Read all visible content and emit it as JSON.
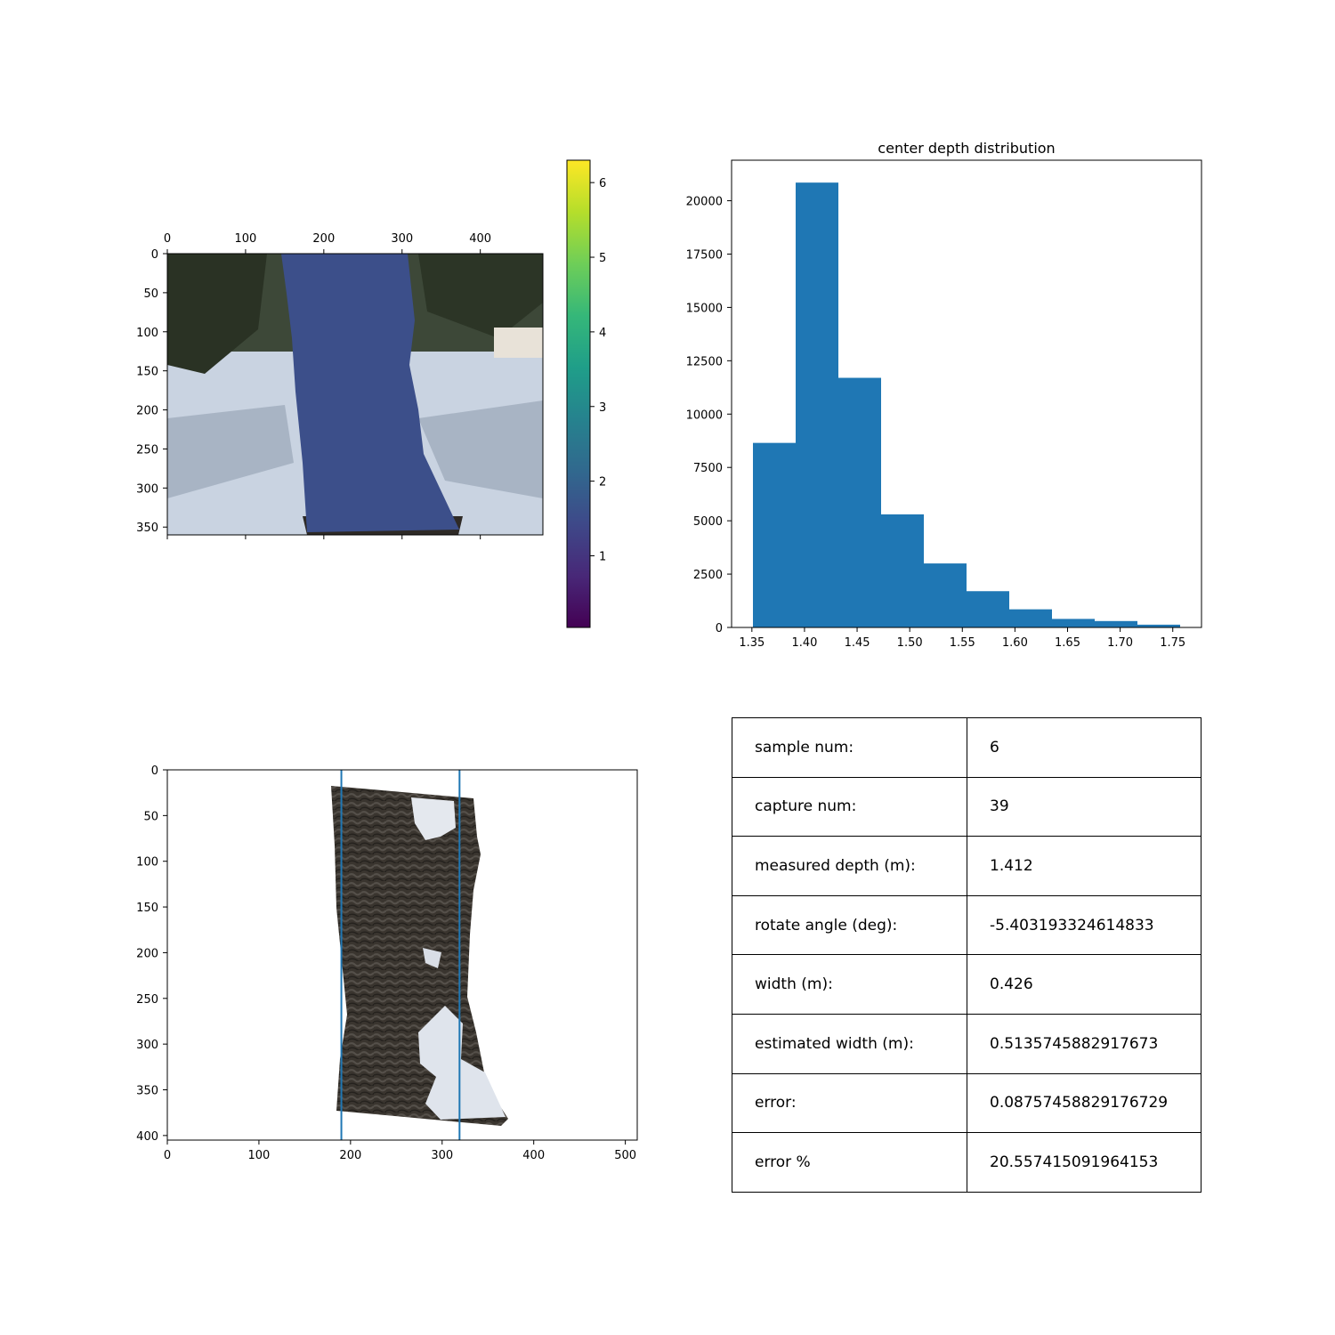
{
  "colors": {
    "bar": "#1f77b4",
    "vline": "#1f77b4",
    "depth_fill": "#3c4f8a",
    "viridis": [
      "#440154",
      "#482878",
      "#3e4989",
      "#31688e",
      "#26828e",
      "#1f9e89",
      "#35b779",
      "#6ece58",
      "#b5de2b",
      "#fde725"
    ]
  },
  "chart_data": [
    {
      "type": "heatmap",
      "description_kind": "depth overlay image with colorbar",
      "x_ticks": [
        0,
        100,
        200,
        300,
        400
      ],
      "y_ticks": [
        0,
        50,
        100,
        150,
        200,
        250,
        300,
        350
      ],
      "xlim": [
        0,
        480
      ],
      "ylim": [
        360,
        0
      ],
      "colorbar": {
        "ticks": [
          1,
          2,
          3,
          4,
          5,
          6
        ],
        "range": [
          0.04,
          6.3
        ],
        "colormap": "viridis"
      },
      "region_value": 1.41
    },
    {
      "type": "bar",
      "title": "center depth distribution",
      "bin_edges": [
        1.351,
        1.3916,
        1.4322,
        1.4728,
        1.5134,
        1.554,
        1.5946,
        1.6352,
        1.6758,
        1.7164,
        1.757
      ],
      "values": [
        8650,
        20850,
        11700,
        5300,
        3000,
        1700,
        850,
        400,
        300,
        130
      ],
      "x_ticks": [
        "1.35",
        "1.40",
        "1.45",
        "1.50",
        "1.55",
        "1.60",
        "1.65",
        "1.70",
        "1.75"
      ],
      "y_ticks": [
        "0",
        "2500",
        "5000",
        "7500",
        "10000",
        "12500",
        "15000",
        "17500",
        "20000"
      ],
      "xlim": [
        1.3307,
        1.7773
      ],
      "ylim": [
        0,
        21900
      ]
    },
    {
      "type": "heatmap",
      "description_kind": "rotated cropped trunk image with two vertical lines",
      "x_ticks": [
        0,
        100,
        200,
        300,
        400,
        500
      ],
      "y_ticks": [
        0,
        50,
        100,
        150,
        200,
        250,
        300,
        350,
        400
      ],
      "xlim": [
        0,
        513
      ],
      "ylim": [
        405,
        0
      ],
      "vlines": [
        190,
        319
      ]
    }
  ],
  "table": [
    {
      "label": "sample num:",
      "value": "6"
    },
    {
      "label": "capture num:",
      "value": "39"
    },
    {
      "label": "measured depth (m):",
      "value": "1.412"
    },
    {
      "label": "rotate angle (deg):",
      "value": "-5.403193324614833"
    },
    {
      "label": "width (m):",
      "value": "0.426"
    },
    {
      "label": "estimated width (m):",
      "value": "0.5135745882917673"
    },
    {
      "label": "error:",
      "value": "0.08757458829176729"
    },
    {
      "label": "error %",
      "value": "20.557415091964153"
    }
  ]
}
